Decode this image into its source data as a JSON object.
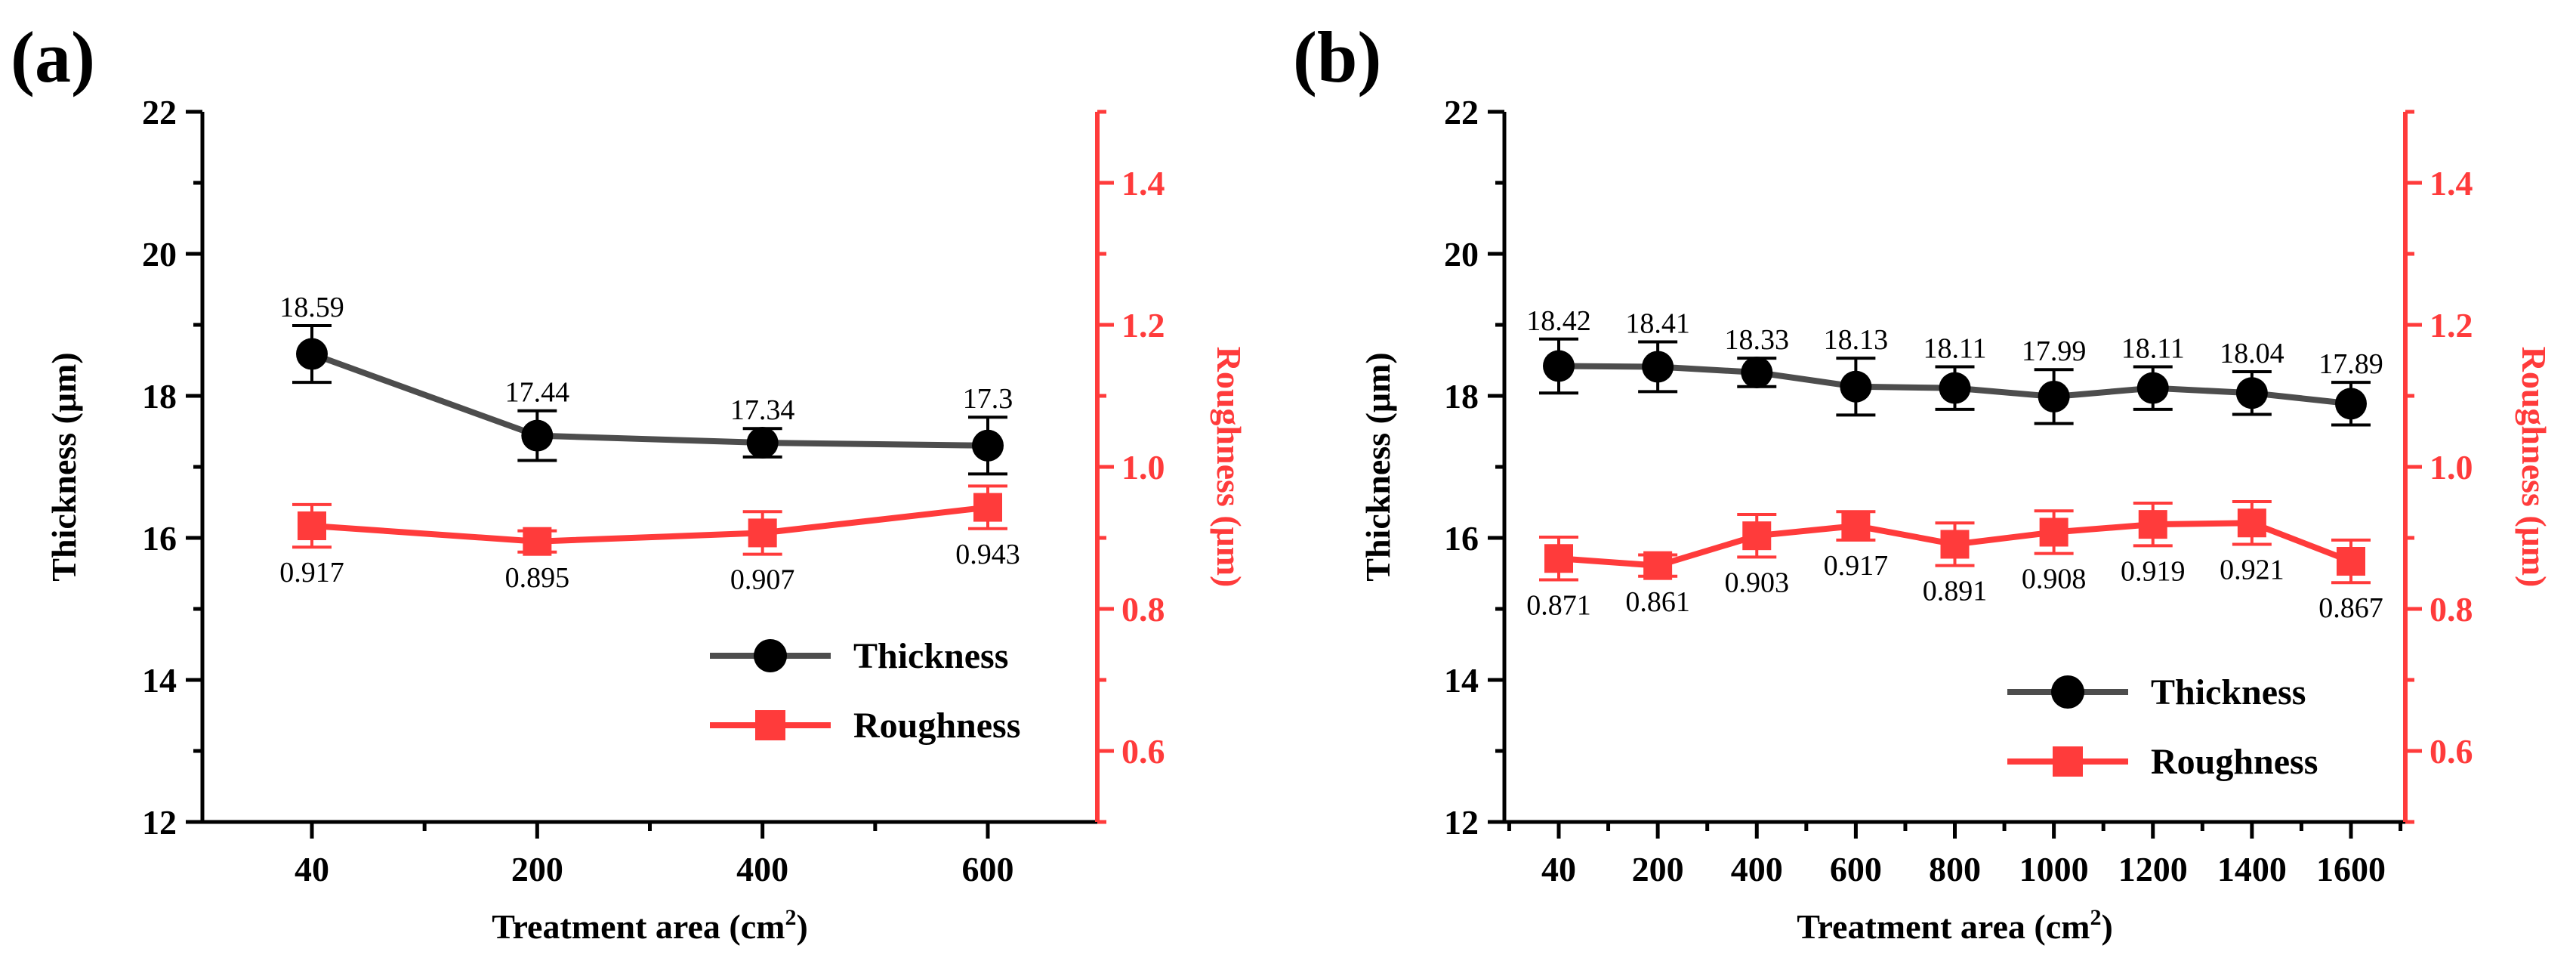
{
  "chart_data": [
    {
      "panel_label": "(a)",
      "type": "line",
      "categories": [
        "40",
        "200",
        "400",
        "600"
      ],
      "xlabel": "Treatment area (cm",
      "xlabel_sup": "2",
      "xlabel_end": ")",
      "ylabel": "Thickness (μm)",
      "y2label": "Roughness (μm)",
      "ylim": [
        12,
        22
      ],
      "y_ticks": [
        "12",
        "14",
        "16",
        "18",
        "20",
        "22"
      ],
      "y2lim": [
        0.5,
        1.5
      ],
      "y2_ticks": [
        "0.6",
        "0.8",
        "1.0",
        "1.2",
        "1.4"
      ],
      "series": [
        {
          "name": "Thickness",
          "axis": "left",
          "color": "#4d4d4d",
          "marker": "circle",
          "values": [
            18.59,
            17.44,
            17.34,
            17.3
          ],
          "errors": [
            0.4,
            0.35,
            0.2,
            0.4
          ],
          "labels": [
            "18.59",
            "17.44",
            "17.34",
            "17.3"
          ]
        },
        {
          "name": "Roughness",
          "axis": "right",
          "color": "#ff3b3b",
          "marker": "square",
          "values": [
            0.917,
            0.895,
            0.907,
            0.943
          ],
          "errors": [
            0.03,
            0.015,
            0.03,
            0.03
          ],
          "labels": [
            "0.917",
            "0.895",
            "0.907",
            "0.943"
          ]
        }
      ],
      "legend": [
        "Thickness",
        "Roughness"
      ]
    },
    {
      "panel_label": "(b)",
      "type": "line",
      "categories": [
        "40",
        "200",
        "400",
        "600",
        "800",
        "1000",
        "1200",
        "1400",
        "1600"
      ],
      "xlabel": "Treatment area (cm",
      "xlabel_sup": "2",
      "xlabel_end": ")",
      "ylabel": "Thickness (μm)",
      "y2label": "Roughness (μm)",
      "ylim": [
        12,
        22
      ],
      "y_ticks": [
        "12",
        "14",
        "16",
        "18",
        "20",
        "22"
      ],
      "y2lim": [
        0.5,
        1.5
      ],
      "y2_ticks": [
        "0.6",
        "0.8",
        "1.0",
        "1.2",
        "1.4"
      ],
      "series": [
        {
          "name": "Thickness",
          "axis": "left",
          "color": "#4d4d4d",
          "marker": "circle",
          "values": [
            18.42,
            18.41,
            18.33,
            18.13,
            18.11,
            17.99,
            18.11,
            18.04,
            17.89
          ],
          "errors": [
            0.38,
            0.35,
            0.2,
            0.4,
            0.3,
            0.38,
            0.3,
            0.3,
            0.3
          ],
          "labels": [
            "18.42",
            "18.41",
            "18.33",
            "18.13",
            "18.11",
            "17.99",
            "18.11",
            "18.04",
            "17.89"
          ]
        },
        {
          "name": "Roughness",
          "axis": "right",
          "color": "#ff3b3b",
          "marker": "square",
          "values": [
            0.871,
            0.861,
            0.903,
            0.917,
            0.891,
            0.908,
            0.919,
            0.921,
            0.867
          ],
          "errors": [
            0.03,
            0.015,
            0.03,
            0.02,
            0.03,
            0.03,
            0.03,
            0.03,
            0.03
          ],
          "labels": [
            "0.871",
            "0.861",
            "0.903",
            "0.917",
            "0.891",
            "0.908",
            "0.919",
            "0.921",
            "0.867"
          ]
        }
      ],
      "legend": [
        "Thickness",
        "Roughness"
      ]
    }
  ]
}
